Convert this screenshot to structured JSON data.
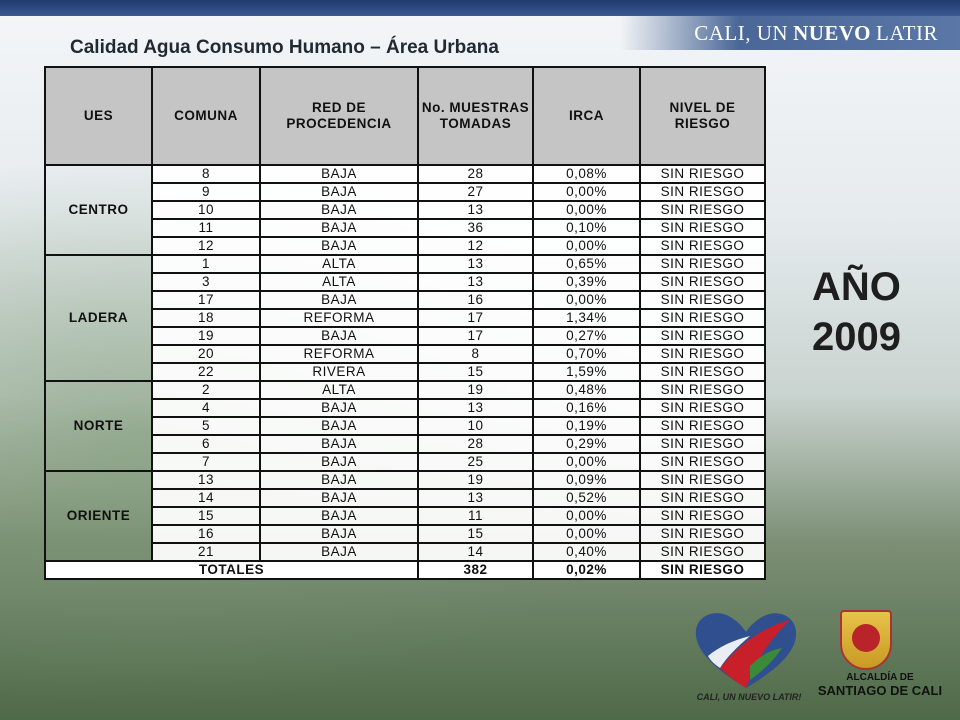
{
  "header": {
    "brand_prefix": "CALI, UN",
    "brand_highlight": "NUEVO",
    "brand_suffix": "LATIR"
  },
  "title": "Calidad Agua Consumo Humano – Área Urbana",
  "year": {
    "label": "AÑO",
    "value": "2009"
  },
  "table": {
    "columns": [
      "UES",
      "COMUNA",
      "RED DE PROCEDENCIA",
      "No. MUESTRAS TOMADAS",
      "IRCA",
      "NIVEL DE RIESGO"
    ],
    "groups": [
      {
        "ues": "CENTRO",
        "rows": [
          [
            "8",
            "BAJA",
            "28",
            "0,08%",
            "SIN RIESGO"
          ],
          [
            "9",
            "BAJA",
            "27",
            "0,00%",
            "SIN RIESGO"
          ],
          [
            "10",
            "BAJA",
            "13",
            "0,00%",
            "SIN RIESGO"
          ],
          [
            "11",
            "BAJA",
            "36",
            "0,10%",
            "SIN RIESGO"
          ],
          [
            "12",
            "BAJA",
            "12",
            "0,00%",
            "SIN RIESGO"
          ]
        ]
      },
      {
        "ues": "LADERA",
        "rows": [
          [
            "1",
            "ALTA",
            "13",
            "0,65%",
            "SIN RIESGO"
          ],
          [
            "3",
            "ALTA",
            "13",
            "0,39%",
            "SIN RIESGO"
          ],
          [
            "17",
            "BAJA",
            "16",
            "0,00%",
            "SIN RIESGO"
          ],
          [
            "18",
            "REFORMA",
            "17",
            "1,34%",
            "SIN RIESGO"
          ],
          [
            "19",
            "BAJA",
            "17",
            "0,27%",
            "SIN RIESGO"
          ],
          [
            "20",
            "REFORMA",
            "8",
            "0,70%",
            "SIN RIESGO"
          ],
          [
            "22",
            "RIVERA",
            "15",
            "1,59%",
            "SIN RIESGO"
          ]
        ]
      },
      {
        "ues": "NORTE",
        "rows": [
          [
            "2",
            "ALTA",
            "19",
            "0,48%",
            "SIN RIESGO"
          ],
          [
            "4",
            "BAJA",
            "13",
            "0,16%",
            "SIN RIESGO"
          ],
          [
            "5",
            "BAJA",
            "10",
            "0,19%",
            "SIN RIESGO"
          ],
          [
            "6",
            "BAJA",
            "28",
            "0,29%",
            "SIN RIESGO"
          ],
          [
            "7",
            "BAJA",
            "25",
            "0,00%",
            "SIN RIESGO"
          ]
        ]
      },
      {
        "ues": "ORIENTE",
        "rows": [
          [
            "13",
            "BAJA",
            "19",
            "0,09%",
            "SIN RIESGO"
          ],
          [
            "14",
            "BAJA",
            "13",
            "0,52%",
            "SIN RIESGO"
          ],
          [
            "15",
            "BAJA",
            "11",
            "0,00%",
            "SIN RIESGO"
          ],
          [
            "16",
            "BAJA",
            "15",
            "0,00%",
            "SIN RIESGO"
          ],
          [
            "21",
            "BAJA",
            "14",
            "0,40%",
            "SIN RIESGO"
          ]
        ]
      }
    ],
    "totals": {
      "label": "TOTALES",
      "muestras": "382",
      "irca": "0,02%",
      "riesgo": "SIN RIESGO"
    }
  },
  "footer": {
    "heart_caption": "CALI, UN NUEVO LATIR!",
    "alcaldia_line1": "ALCALDÍA DE",
    "alcaldia_line2": "SANTIAGO DE CALI"
  },
  "colors": {
    "header_bar": "#1f3a6e",
    "table_header": "#c5c5c5",
    "border": "#111111"
  }
}
